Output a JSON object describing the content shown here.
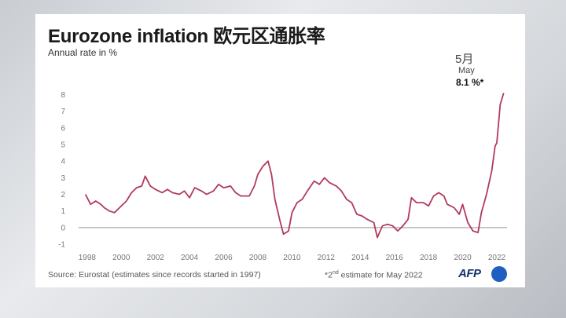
{
  "header": {
    "title": "Eurozone inflation 欧元区通胀率",
    "subtitle": "Annual rate in %"
  },
  "annotation": {
    "month_cn": "5月",
    "month_en": "May",
    "value": "8.1 %*"
  },
  "footer": {
    "source": "Source: Eurostat (estimates since records started in 1997)",
    "note_pre": "*2",
    "note_sup": "nd",
    "note_post": " estimate for May 2022",
    "logo_text": "AFP"
  },
  "colors": {
    "line": "#b23a5b",
    "zero_line": "#999999",
    "logo": "#1f5fbf"
  },
  "chart_data": {
    "type": "line",
    "title": "Eurozone inflation 欧元区通胀率",
    "ylabel": "Annual rate in %",
    "xlabel": "",
    "xlim": [
      1997.5,
      2022.6
    ],
    "ylim": [
      -1,
      8.5
    ],
    "y_ticks": [
      -1,
      0,
      1,
      2,
      3,
      4,
      5,
      6,
      7,
      8
    ],
    "x_ticks": [
      1998,
      2000,
      2002,
      2004,
      2006,
      2008,
      2010,
      2012,
      2014,
      2016,
      2018,
      2020,
      2022
    ],
    "grid": "horizontal",
    "series": [
      {
        "name": "",
        "points": [
          [
            1997.9,
            2.0
          ],
          [
            1998.2,
            1.4
          ],
          [
            1998.5,
            1.6
          ],
          [
            1998.8,
            1.4
          ],
          [
            1999.0,
            1.2
          ],
          [
            1999.3,
            1.0
          ],
          [
            1999.6,
            0.9
          ],
          [
            1999.9,
            1.2
          ],
          [
            2000.3,
            1.6
          ],
          [
            2000.6,
            2.1
          ],
          [
            2000.9,
            2.4
          ],
          [
            2001.2,
            2.5
          ],
          [
            2001.4,
            3.1
          ],
          [
            2001.7,
            2.5
          ],
          [
            2002.0,
            2.3
          ],
          [
            2002.4,
            2.1
          ],
          [
            2002.7,
            2.3
          ],
          [
            2003.0,
            2.1
          ],
          [
            2003.4,
            2.0
          ],
          [
            2003.7,
            2.2
          ],
          [
            2004.0,
            1.8
          ],
          [
            2004.3,
            2.4
          ],
          [
            2004.7,
            2.2
          ],
          [
            2005.0,
            2.0
          ],
          [
            2005.4,
            2.2
          ],
          [
            2005.7,
            2.6
          ],
          [
            2006.0,
            2.4
          ],
          [
            2006.4,
            2.5
          ],
          [
            2006.7,
            2.1
          ],
          [
            2007.0,
            1.9
          ],
          [
            2007.5,
            1.9
          ],
          [
            2007.8,
            2.5
          ],
          [
            2008.0,
            3.2
          ],
          [
            2008.3,
            3.7
          ],
          [
            2008.6,
            4.0
          ],
          [
            2008.8,
            3.2
          ],
          [
            2009.0,
            1.7
          ],
          [
            2009.3,
            0.4
          ],
          [
            2009.5,
            -0.4
          ],
          [
            2009.8,
            -0.2
          ],
          [
            2010.0,
            0.9
          ],
          [
            2010.3,
            1.5
          ],
          [
            2010.6,
            1.7
          ],
          [
            2010.9,
            2.2
          ],
          [
            2011.3,
            2.8
          ],
          [
            2011.6,
            2.6
          ],
          [
            2011.9,
            3.0
          ],
          [
            2012.2,
            2.7
          ],
          [
            2012.6,
            2.5
          ],
          [
            2012.9,
            2.2
          ],
          [
            2013.2,
            1.7
          ],
          [
            2013.5,
            1.5
          ],
          [
            2013.8,
            0.8
          ],
          [
            2014.1,
            0.7
          ],
          [
            2014.4,
            0.5
          ],
          [
            2014.8,
            0.3
          ],
          [
            2015.0,
            -0.6
          ],
          [
            2015.3,
            0.1
          ],
          [
            2015.6,
            0.2
          ],
          [
            2015.9,
            0.1
          ],
          [
            2016.2,
            -0.2
          ],
          [
            2016.5,
            0.1
          ],
          [
            2016.8,
            0.5
          ],
          [
            2017.0,
            1.8
          ],
          [
            2017.3,
            1.5
          ],
          [
            2017.7,
            1.5
          ],
          [
            2018.0,
            1.3
          ],
          [
            2018.3,
            1.9
          ],
          [
            2018.6,
            2.1
          ],
          [
            2018.9,
            1.9
          ],
          [
            2019.1,
            1.4
          ],
          [
            2019.5,
            1.2
          ],
          [
            2019.8,
            0.8
          ],
          [
            2020.0,
            1.4
          ],
          [
            2020.3,
            0.3
          ],
          [
            2020.6,
            -0.2
          ],
          [
            2020.9,
            -0.3
          ],
          [
            2021.1,
            0.9
          ],
          [
            2021.4,
            2.0
          ],
          [
            2021.7,
            3.4
          ],
          [
            2021.9,
            4.9
          ],
          [
            2022.0,
            5.1
          ],
          [
            2022.2,
            7.4
          ],
          [
            2022.4,
            8.1
          ]
        ]
      }
    ]
  }
}
